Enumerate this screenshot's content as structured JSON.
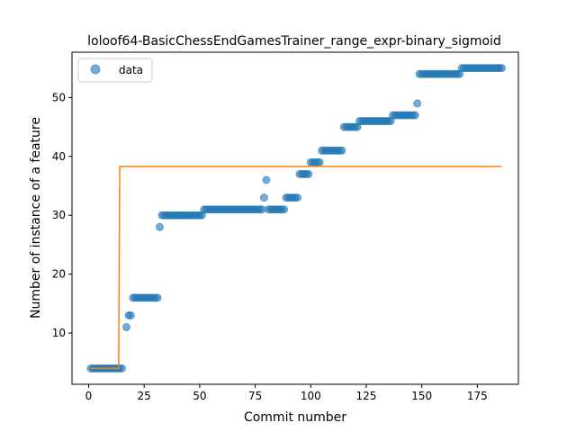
{
  "chart_data": {
    "type": "scatter",
    "title": "loloof64-BasicChessEndGamesTrainer_range_expr-binary_sigmoid",
    "xlabel": "Commit number",
    "ylabel": "Number of instance of a feature",
    "xlim": [
      -7.5,
      193.5
    ],
    "ylim": [
      1.3,
      57.7
    ],
    "x_ticks": [
      0,
      25,
      50,
      75,
      100,
      125,
      150,
      175
    ],
    "y_ticks": [
      10,
      20,
      30,
      40,
      50
    ],
    "grid": false,
    "legend": {
      "position": "top-left",
      "entries": [
        "data"
      ]
    },
    "series": [
      {
        "name": "data",
        "kind": "scatter",
        "color": "#1f77b4",
        "runs": [
          [
            1,
            15,
            4
          ],
          [
            17,
            17,
            11
          ],
          [
            18,
            19,
            13
          ],
          [
            20,
            31,
            16
          ],
          [
            32,
            32,
            28
          ],
          [
            33,
            51,
            30
          ],
          [
            52,
            78,
            31
          ],
          [
            79,
            79,
            33
          ],
          [
            80,
            80,
            36
          ],
          [
            81,
            88,
            31
          ],
          [
            89,
            94,
            33
          ],
          [
            95,
            99,
            37
          ],
          [
            100,
            104,
            39
          ],
          [
            105,
            114,
            41
          ],
          [
            115,
            121,
            45
          ],
          [
            122,
            136,
            46
          ],
          [
            137,
            147,
            47
          ],
          [
            148,
            148,
            49
          ],
          [
            149,
            167,
            54
          ],
          [
            168,
            186,
            55
          ]
        ]
      },
      {
        "kind": "line",
        "color": "#ff7f0e",
        "points": [
          [
            1,
            4
          ],
          [
            13.5,
            4
          ],
          [
            14,
            38.3
          ],
          [
            186,
            38.3
          ]
        ]
      }
    ]
  }
}
